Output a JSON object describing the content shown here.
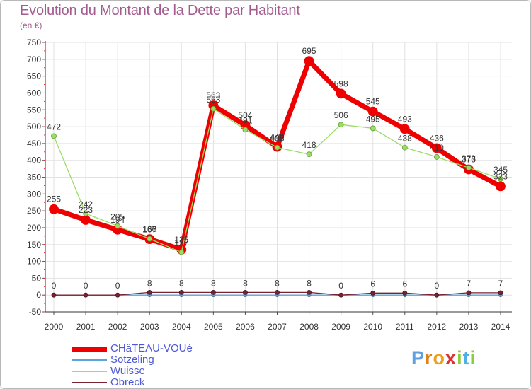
{
  "title": "Evolution du Montant de la Dette par Habitant",
  "unit_label": "(en €)",
  "brand": {
    "text": "Proxiti",
    "letters": [
      "P",
      "r",
      "o",
      "x",
      "i",
      "t",
      "i"
    ],
    "colors": [
      "#5fa0e0",
      "#e0801c",
      "#f0a020",
      "#e03030",
      "#8ccc3c",
      "#4fb0e8",
      "#8ccc3c"
    ]
  },
  "chart_data": {
    "type": "line",
    "title": "Evolution du Montant de la Dette par Habitant",
    "ylabel": "(en €)",
    "xlabel": "",
    "ylim": [
      -50,
      750
    ],
    "ytick_step": 50,
    "grid": true,
    "legend_position": "bottom-left",
    "x": [
      "2000",
      "2001",
      "2002",
      "2003",
      "2004",
      "2005",
      "2006",
      "2007",
      "2008",
      "2009",
      "2010",
      "2011",
      "2012",
      "2013",
      "2014"
    ],
    "series": [
      {
        "name": "CHâTEAU-VOUé",
        "color": "#ee0000",
        "values": [
          255,
          223,
          194,
          166,
          135,
          563,
          504,
          440,
          695,
          598,
          545,
          493,
          436,
          373,
          323
        ],
        "labels": [
          "255",
          "223",
          "194",
          "166",
          "135",
          "563",
          "504",
          "440",
          "695",
          "598",
          "545",
          "493",
          "436",
          "373",
          "323"
        ]
      },
      {
        "name": "Sotzeling",
        "color": "#5ba3d9",
        "values": [
          0,
          0,
          0,
          0,
          0,
          0,
          0,
          0,
          0,
          0,
          0,
          0,
          0,
          0,
          0
        ]
      },
      {
        "name": "Wuisse",
        "color": "#99dd66",
        "values": [
          472,
          242,
          205,
          167,
          127,
          553,
          491,
          438,
          418,
          506,
          495,
          438,
          410,
          378,
          345
        ],
        "labels": [
          "472",
          "242",
          "205",
          "167",
          "127",
          "553",
          "491",
          "438",
          "418",
          "506",
          "495",
          "438",
          "410",
          "378",
          "345"
        ]
      },
      {
        "name": "Obreck",
        "color": "#7a2230",
        "values": [
          0,
          0,
          0,
          8,
          8,
          8,
          8,
          8,
          8,
          0,
          6,
          6,
          0,
          7,
          7
        ],
        "labels": [
          "0",
          "0",
          "0",
          "8",
          "8",
          "8",
          "8",
          "8",
          "8",
          "0",
          "6",
          "6",
          "0",
          "7",
          "7"
        ]
      }
    ]
  }
}
